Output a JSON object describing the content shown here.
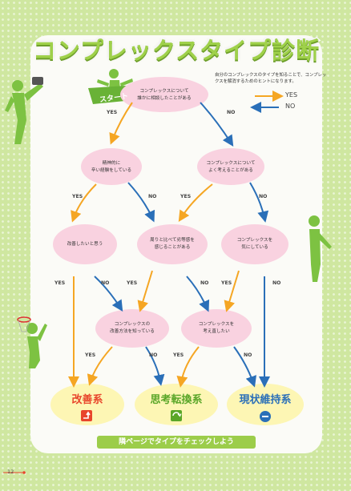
{
  "title": "コンプレックスタイプ診断",
  "intro": "自分のコンプレックスのタイプを知ることで、コンプレックスを解消するためのヒントになります。",
  "legend": {
    "yes": "YES",
    "no": "NO",
    "yes_color": "#f5a623",
    "no_color": "#2a6fb8"
  },
  "start": "スタート",
  "nodes": {
    "q1": [
      "コンプレックスについて",
      "誰かに相談したことがある"
    ],
    "q2": [
      "精神的に",
      "辛い経験をしている"
    ],
    "q3": [
      "コンプレックスについて",
      "よく考えることがある"
    ],
    "q4": [
      "改善したいと思う"
    ],
    "q5": [
      "周りと比べて劣等感を",
      "感じることがある"
    ],
    "q6": [
      "コンプレックスを",
      "気にしている"
    ],
    "q7": [
      "コンプレックスの",
      "改善方法を知っている"
    ],
    "q8": [
      "コンプレックスを",
      "考え直したい"
    ]
  },
  "branch_labels": {
    "yes": "YES",
    "no": "NO"
  },
  "results": {
    "r1": {
      "label": "改善系",
      "color": "#e8452b"
    },
    "r2": {
      "label": "思考転換系",
      "color": "#5aa628"
    },
    "r3": {
      "label": "現状維持系",
      "color": "#2a6fb8"
    }
  },
  "footer": "隣ページでタイプをチェックしよう",
  "page_number": "12",
  "colors": {
    "bg_green": "#cfe7a0",
    "cloud_pink": "#f9d2e0",
    "cloud_yellow": "#fdf6b4",
    "figure_green": "#7dc242"
  }
}
